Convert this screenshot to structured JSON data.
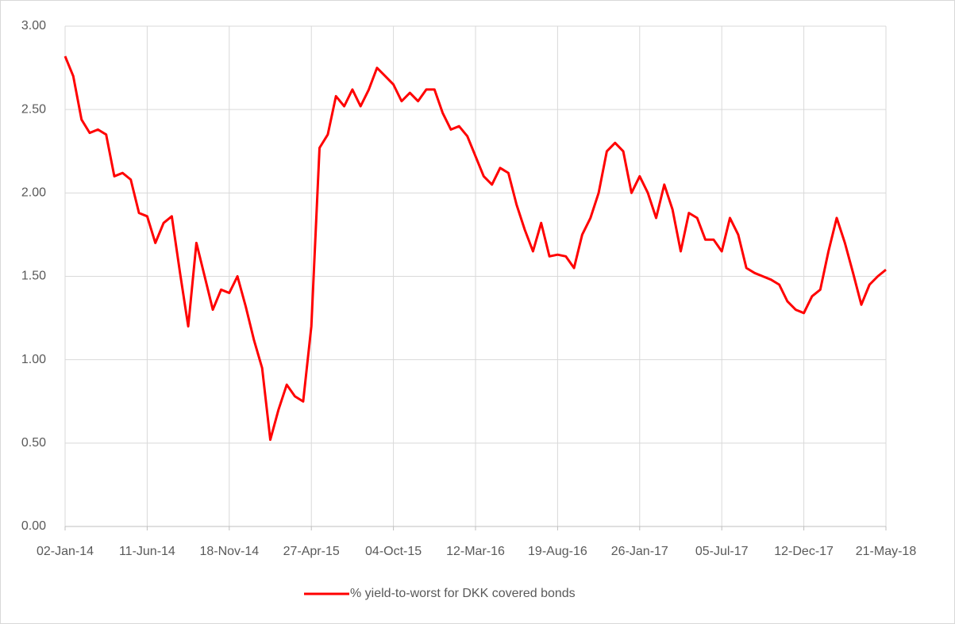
{
  "chart_data": {
    "type": "line",
    "x": [
      "02-Jan-14",
      "18-Jan-14",
      "03-Feb-14",
      "19-Feb-14",
      "07-Mar-14",
      "23-Mar-14",
      "08-Apr-14",
      "24-Apr-14",
      "10-May-14",
      "26-May-14",
      "11-Jun-14",
      "27-Jun-14",
      "13-Jul-14",
      "29-Jul-14",
      "14-Aug-14",
      "30-Aug-14",
      "15-Sep-14",
      "01-Oct-14",
      "17-Oct-14",
      "02-Nov-14",
      "18-Nov-14",
      "04-Dec-14",
      "20-Dec-14",
      "05-Jan-15",
      "21-Jan-15",
      "06-Feb-15",
      "22-Feb-15",
      "10-Mar-15",
      "26-Mar-15",
      "11-Apr-15",
      "27-Apr-15",
      "13-May-15",
      "29-May-15",
      "14-Jun-15",
      "30-Jun-15",
      "16-Jul-15",
      "01-Aug-15",
      "17-Aug-15",
      "02-Sep-15",
      "18-Sep-15",
      "04-Oct-15",
      "20-Oct-15",
      "05-Nov-15",
      "21-Nov-15",
      "07-Dec-15",
      "23-Dec-15",
      "08-Jan-16",
      "24-Jan-16",
      "09-Feb-16",
      "25-Feb-16",
      "12-Mar-16",
      "28-Mar-16",
      "13-Apr-16",
      "29-Apr-16",
      "15-May-16",
      "31-May-16",
      "16-Jun-16",
      "02-Jul-16",
      "18-Jul-16",
      "03-Aug-16",
      "19-Aug-16",
      "04-Sep-16",
      "20-Sep-16",
      "06-Oct-16",
      "22-Oct-16",
      "07-Nov-16",
      "23-Nov-16",
      "09-Dec-16",
      "25-Dec-16",
      "10-Jan-17",
      "26-Jan-17",
      "11-Feb-17",
      "27-Feb-17",
      "15-Mar-17",
      "31-Mar-17",
      "16-Apr-17",
      "02-May-17",
      "18-May-17",
      "03-Jun-17",
      "19-Jun-17",
      "05-Jul-17",
      "21-Jul-17",
      "06-Aug-17",
      "22-Aug-17",
      "07-Sep-17",
      "23-Sep-17",
      "09-Oct-17",
      "25-Oct-17",
      "10-Nov-17",
      "26-Nov-17",
      "12-Dec-17",
      "28-Dec-17",
      "13-Jan-18",
      "29-Jan-18",
      "14-Feb-18",
      "02-Mar-18",
      "18-Mar-18",
      "03-Apr-18",
      "19-Apr-18",
      "05-May-18",
      "21-May-18"
    ],
    "series": [
      {
        "name": "% yield-to-worst for DKK covered bonds",
        "color": "#ff0000",
        "values": [
          2.82,
          2.7,
          2.44,
          2.36,
          2.38,
          2.35,
          2.1,
          2.12,
          2.08,
          1.88,
          1.86,
          1.7,
          1.82,
          1.86,
          1.52,
          1.2,
          1.7,
          1.5,
          1.3,
          1.42,
          1.4,
          1.5,
          1.32,
          1.12,
          0.95,
          0.52,
          0.7,
          0.85,
          0.78,
          0.75,
          1.2,
          2.27,
          2.35,
          2.58,
          2.52,
          2.62,
          2.52,
          2.62,
          2.75,
          2.7,
          2.65,
          2.55,
          2.6,
          2.55,
          2.62,
          2.62,
          2.48,
          2.38,
          2.4,
          2.34,
          2.22,
          2.1,
          2.05,
          2.15,
          2.12,
          1.93,
          1.78,
          1.65,
          1.82,
          1.62,
          1.63,
          1.62,
          1.55,
          1.75,
          1.85,
          2.0,
          2.25,
          2.3,
          2.25,
          2.0,
          2.1,
          2.0,
          1.85,
          2.05,
          1.9,
          1.65,
          1.88,
          1.85,
          1.72,
          1.72,
          1.65,
          1.85,
          1.75,
          1.55,
          1.52,
          1.5,
          1.48,
          1.45,
          1.35,
          1.3,
          1.28,
          1.38,
          1.42,
          1.65,
          1.85,
          1.7,
          1.52,
          1.33,
          1.45,
          1.5,
          1.54
        ]
      }
    ],
    "xlim": [
      "02-Jan-14",
      "21-May-18"
    ],
    "xticks": [
      "02-Jan-14",
      "11-Jun-14",
      "18-Nov-14",
      "27-Apr-15",
      "04-Oct-15",
      "12-Mar-16",
      "19-Aug-16",
      "26-Jan-17",
      "05-Jul-17",
      "12-Dec-17",
      "21-May-18"
    ],
    "ylim": [
      0,
      3
    ],
    "yticks": [
      {
        "value": 0,
        "label": "0.00"
      },
      {
        "value": 0.5,
        "label": "0.50"
      },
      {
        "value": 1,
        "label": "1.00"
      },
      {
        "value": 1.5,
        "label": "1.50"
      },
      {
        "value": 2,
        "label": "2.00"
      },
      {
        "value": 2.5,
        "label": "2.50"
      },
      {
        "value": 3,
        "label": "3.00"
      }
    ],
    "grid": true,
    "legend": "bottom"
  }
}
